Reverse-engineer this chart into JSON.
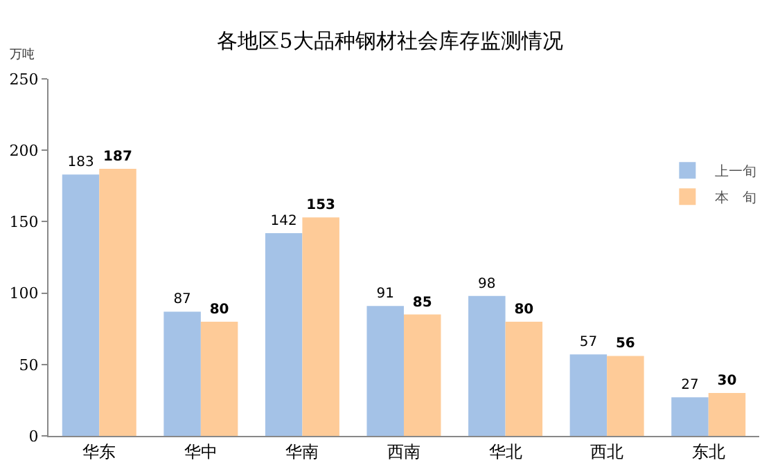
{
  "chart_data": {
    "type": "bar",
    "title": "各地区5大品种钢材社会库存监测情况",
    "ylabel": "万吨",
    "categories": [
      "华东",
      "华中",
      "华南",
      "西南",
      "华北",
      "西北",
      "东北"
    ],
    "series": [
      {
        "name": "上一旬",
        "color": "#a4c2e7",
        "values": [
          183,
          87,
          142,
          91,
          98,
          57,
          27
        ]
      },
      {
        "name": "本　旬",
        "color": "#fecb98",
        "values": [
          187,
          80,
          153,
          85,
          80,
          56,
          30
        ]
      }
    ],
    "ylim": [
      0,
      250
    ],
    "yticks": [
      0,
      50,
      100,
      150,
      200,
      250
    ],
    "grid": false,
    "legend": "top right",
    "data_labels": true
  }
}
